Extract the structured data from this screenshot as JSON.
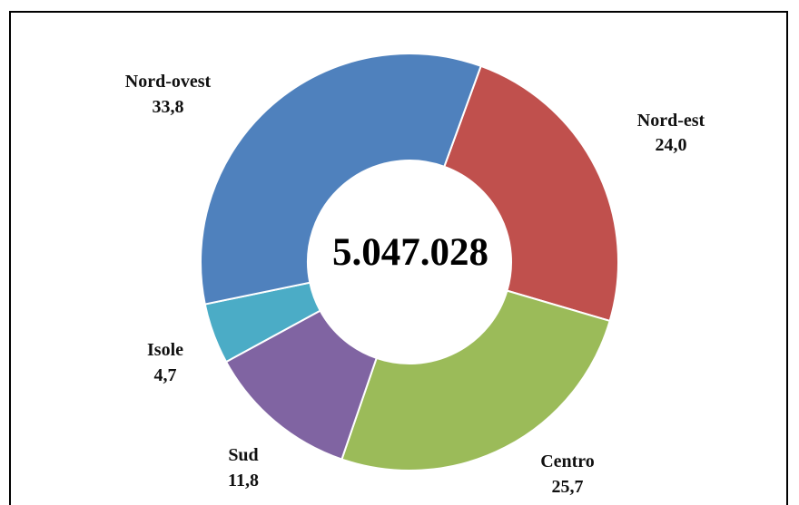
{
  "chart_data": {
    "type": "pie",
    "style": "donut",
    "center_label": "5.047.028",
    "categories": [
      "Nord-est",
      "Centro",
      "Sud",
      "Isole",
      "Nord-ovest"
    ],
    "values": [
      "24,0",
      "25,7",
      "11,8",
      "4,7",
      "33,8"
    ],
    "numeric_values": [
      24.0,
      25.7,
      11.8,
      4.7,
      33.8
    ],
    "colors": [
      "#c0504d",
      "#9bbb59",
      "#8064a2",
      "#4bacc6",
      "#4f81bd"
    ]
  }
}
